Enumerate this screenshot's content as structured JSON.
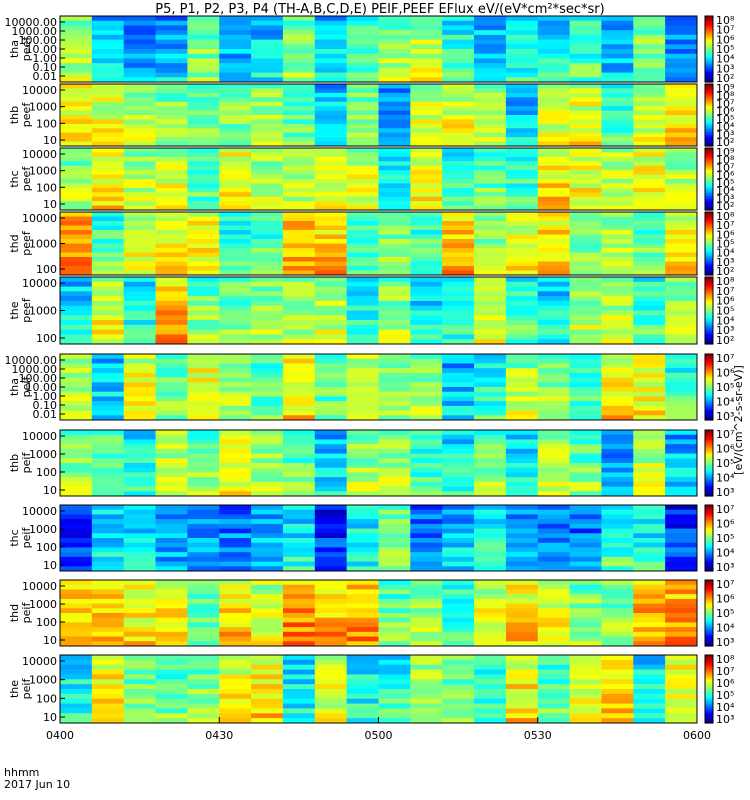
{
  "title": "P5, P1, P2, P3, P4 (TH-A,B,C,D,E) PEIF,PEEF EFlux eV/(eV*cm²*sec*sr)",
  "time_axis": {
    "label_line1": "hhmm",
    "label_line2": "2017 Jun 10",
    "ticks": [
      "0400",
      "0430",
      "0500",
      "0530",
      "0600"
    ]
  },
  "colorbar_label": "[eV/(cm^2-s-sr-eV)]",
  "chart_data": {
    "type": "heatmap",
    "x_range": [
      "0400",
      "0600"
    ],
    "panels": [
      {
        "label": "tha peef",
        "yticks": [
          "10000.00",
          "1000.00",
          "100.00",
          "10.00",
          "1.00",
          "0.10",
          "0.01"
        ],
        "cbar_ticks": [
          "10⁸",
          "10⁷",
          "10⁶",
          "10⁵",
          "10⁴",
          "10³",
          "10²"
        ],
        "baseline": 3.6,
        "seed": 11
      },
      {
        "label": "thb peef",
        "yticks": [
          "10000",
          "1000",
          "100",
          "10"
        ],
        "cbar_ticks": [
          "10⁹",
          "10⁸",
          "10⁷",
          "10⁶",
          "10⁵",
          "10⁴",
          "10³",
          "10²"
        ],
        "baseline": 4.2,
        "seed": 23
      },
      {
        "label": "thc peef",
        "yticks": [
          "10000",
          "1000",
          "100",
          "10"
        ],
        "cbar_ticks": [
          "10⁹",
          "10⁸",
          "10⁷",
          "10⁶",
          "10⁵",
          "10⁴",
          "10³",
          "10²"
        ],
        "baseline": 4.2,
        "seed": 37
      },
      {
        "label": "thd peef",
        "yticks": [
          "10000",
          "1000",
          "100"
        ],
        "cbar_ticks": [
          "10⁸",
          "10⁷",
          "10⁶",
          "10⁵",
          "10⁴",
          "10³",
          "10²"
        ],
        "baseline": 5.0,
        "seed": 41
      },
      {
        "label": "the peef",
        "yticks": [
          "10000",
          "1000",
          "100"
        ],
        "cbar_ticks": [
          "10⁸",
          "10⁷",
          "10⁶",
          "10⁵",
          "10⁴",
          "10³",
          "10²"
        ],
        "baseline": 4.6,
        "seed": 53
      },
      {
        "label": "tha peif",
        "yticks": [
          "10000.00",
          "1000.00",
          "100.00",
          "10.00",
          "1.00",
          "0.10",
          "0.01"
        ],
        "cbar_ticks": [
          "10⁷",
          "10⁶",
          "10⁵",
          "10⁴",
          "10³"
        ],
        "baseline": 4.2,
        "seed": 61
      },
      {
        "label": "thb peif",
        "yticks": [
          "10000",
          "1000",
          "100",
          "10"
        ],
        "cbar_ticks": [
          "10⁷",
          "10⁶",
          "10⁵",
          "10⁴",
          "10³"
        ],
        "baseline": 3.8,
        "seed": 73
      },
      {
        "label": "thc peif",
        "yticks": [
          "10000",
          "1000",
          "100",
          "10"
        ],
        "cbar_ticks": [
          "10⁷",
          "10⁶",
          "10⁵",
          "10⁴",
          "10³"
        ],
        "baseline": 3.0,
        "seed": 83
      },
      {
        "label": "thd peif",
        "yticks": [
          "10000",
          "1000",
          "100",
          "10"
        ],
        "cbar_ticks": [
          "10⁷",
          "10⁶",
          "10⁵",
          "10⁴",
          "10³"
        ],
        "baseline": 5.2,
        "seed": 97
      },
      {
        "label": "the peif",
        "yticks": [
          "10000",
          "1000",
          "100",
          "10"
        ],
        "cbar_ticks": [
          "10⁸",
          "10⁷",
          "10⁶",
          "10⁵",
          "10⁴",
          "10³"
        ],
        "baseline": 4.5,
        "seed": 101
      }
    ]
  }
}
